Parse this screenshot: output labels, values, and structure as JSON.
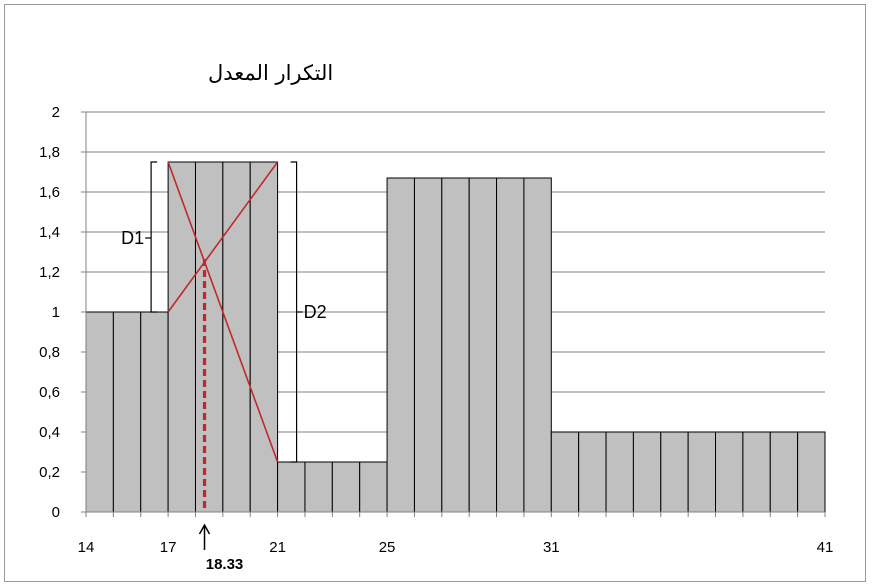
{
  "chart_data": {
    "type": "bar",
    "title": "التكرار المعدل",
    "xlabel": "",
    "ylabel": "",
    "xlim": [
      14,
      41
    ],
    "ylim": [
      0,
      2
    ],
    "grid": true,
    "x_ticks": [
      14,
      17,
      21,
      25,
      31,
      41
    ],
    "y_ticks": [
      "0",
      "0,2",
      "0,4",
      "0,6",
      "0,8",
      "1",
      "1,2",
      "1,4",
      "1,6",
      "1,8",
      "2"
    ],
    "classes": [
      {
        "from": 14,
        "to": 17,
        "value": 1.0
      },
      {
        "from": 17,
        "to": 21,
        "value": 1.75
      },
      {
        "from": 21,
        "to": 25,
        "value": 0.25
      },
      {
        "from": 25,
        "to": 31,
        "value": 1.67
      },
      {
        "from": 31,
        "to": 41,
        "value": 0.4
      }
    ],
    "mode_marker": {
      "x": 18.33,
      "label": "18.33"
    },
    "annotations": [
      {
        "label": "D1",
        "span": [
          1.0,
          1.75
        ]
      },
      {
        "label": "D2",
        "span": [
          0.25,
          1.75
        ]
      }
    ],
    "colors": {
      "bar": "#c0c0c0",
      "construction_lines": "#c0282d",
      "grid": "#808080"
    }
  }
}
